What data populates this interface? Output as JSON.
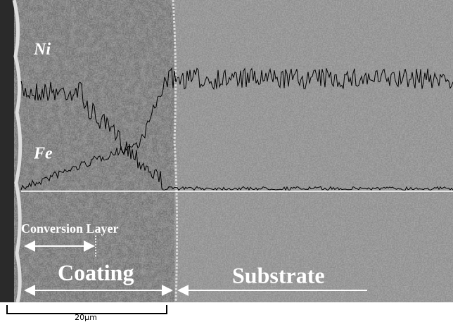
{
  "labels": {
    "ni": "Ni",
    "fe": "Fe",
    "conversion_layer": "Conversion Layer",
    "coating": "Coating",
    "substrate": "Substrate"
  },
  "scale_bar": {
    "label": "20µm"
  }
}
